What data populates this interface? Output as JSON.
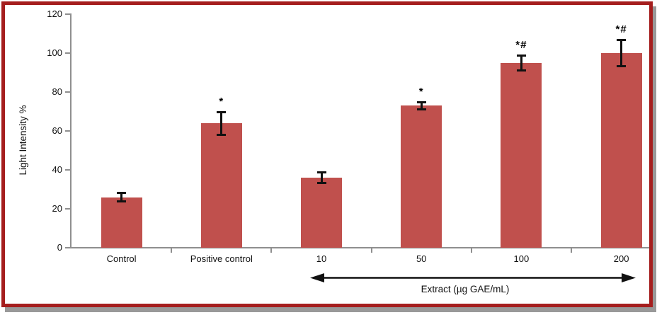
{
  "figure": {
    "border_color": "#A51E1E",
    "shadow_color": "#999999",
    "background": "#ffffff"
  },
  "chart_data": {
    "type": "bar",
    "title": "",
    "ylabel": "Light Intensity %",
    "xlabel": "",
    "ylim": [
      0,
      120
    ],
    "yticks": [
      0,
      20,
      40,
      60,
      80,
      100,
      120
    ],
    "categories": [
      "Control",
      "Positive control",
      "10",
      "50",
      "100",
      "200"
    ],
    "values": [
      26,
      64,
      36,
      73,
      95,
      100
    ],
    "errors": [
      2.5,
      6,
      3,
      2,
      4,
      7
    ],
    "significance": [
      "",
      "*",
      "",
      "*",
      "*#",
      "*#"
    ],
    "bar_color": "#C0504D",
    "error_bar_color": "#111111",
    "axis_color": "#8f8f8f",
    "grid": false,
    "legend": null,
    "group_label": {
      "text": "Extract (µg GAE/mL)",
      "span_categories": [
        "10",
        "200"
      ]
    }
  }
}
